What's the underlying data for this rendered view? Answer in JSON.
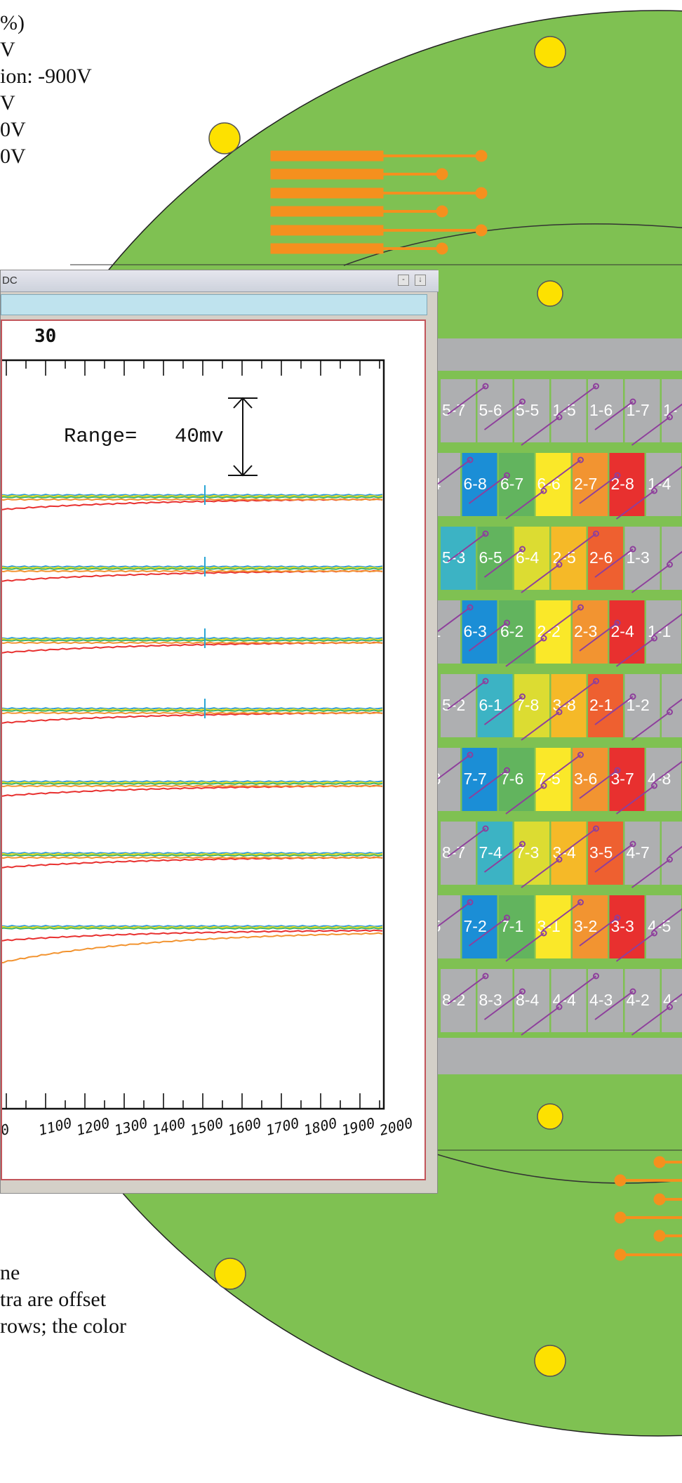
{
  "top_text": [
    "%)",
    "V",
    "ion: -900V",
    "V",
    "0V",
    "0V"
  ],
  "bottom_text": [
    "ne",
    "tra are offset",
    " rows; the color"
  ],
  "scope_window": {
    "title": "DC",
    "min_label": "-",
    "close_label": "↓"
  },
  "plot": {
    "axis_top_label": "30",
    "range_label": "Range=",
    "range_value": "40mv",
    "x_tick_labels": [
      "0",
      "1100",
      "1200",
      "1300",
      "1400",
      "1500",
      "1600",
      "1700",
      "1800",
      "1900",
      "2000"
    ]
  },
  "chart_data": {
    "type": "line",
    "xlim": [
      0,
      2000
    ],
    "range_mv": 40,
    "series": [
      {
        "color": "#2a9ad6",
        "points": [
          [
            0,
            0
          ],
          [
            2000,
            0
          ]
        ]
      }
    ]
  },
  "board": {
    "rows": [
      [
        {
          "label": "5-7",
          "color": "#aeafb1"
        },
        {
          "label": "5-6",
          "color": "#aeafb1"
        },
        {
          "label": "5-5",
          "color": "#aeafb1"
        },
        {
          "label": "1-5",
          "color": "#aeafb1"
        },
        {
          "label": "1-6",
          "color": "#aeafb1"
        },
        {
          "label": "1-7",
          "color": "#aeafb1"
        },
        {
          "label": "1-",
          "color": "#aeafb1"
        }
      ],
      [
        {
          "label": "-4",
          "color": "#aeafb1"
        },
        {
          "label": "6-8",
          "color": "#1b8ed6"
        },
        {
          "label": "6-7",
          "color": "#62b45e"
        },
        {
          "label": "6-6",
          "color": "#fae829"
        },
        {
          "label": "2-7",
          "color": "#f29431"
        },
        {
          "label": "2-8",
          "color": "#e8302f"
        },
        {
          "label": "1-4",
          "color": "#aeafb1"
        }
      ],
      [
        {
          "label": "5-3",
          "color": "#3cb3c4"
        },
        {
          "label": "6-5",
          "color": "#62b45e"
        },
        {
          "label": "6-4",
          "color": "#dcdc32"
        },
        {
          "label": "2-5",
          "color": "#f5b928"
        },
        {
          "label": "2-6",
          "color": "#ee6030"
        },
        {
          "label": "1-3",
          "color": "#aeafb1"
        },
        {
          "label": "",
          "color": "#aeafb1"
        }
      ],
      [
        {
          "label": "-1",
          "color": "#aeafb1"
        },
        {
          "label": "6-3",
          "color": "#1b8ed6"
        },
        {
          "label": "6-2",
          "color": "#62b45e"
        },
        {
          "label": "2-2",
          "color": "#fae829"
        },
        {
          "label": "2-3",
          "color": "#f29431"
        },
        {
          "label": "2-4",
          "color": "#e8302f"
        },
        {
          "label": "1-1",
          "color": "#aeafb1"
        }
      ],
      [
        {
          "label": "5-2",
          "color": "#aeafb1"
        },
        {
          "label": "6-1",
          "color": "#3cb3c4"
        },
        {
          "label": "7-8",
          "color": "#dcdc32"
        },
        {
          "label": "3-8",
          "color": "#f5b928"
        },
        {
          "label": "2-1",
          "color": "#ee6030"
        },
        {
          "label": "1-2",
          "color": "#aeafb1"
        },
        {
          "label": "",
          "color": "#aeafb1"
        }
      ],
      [
        {
          "label": "-8",
          "color": "#aeafb1"
        },
        {
          "label": "7-7",
          "color": "#1b8ed6"
        },
        {
          "label": "7-6",
          "color": "#62b45e"
        },
        {
          "label": "7-5",
          "color": "#fae829"
        },
        {
          "label": "3-6",
          "color": "#f29431"
        },
        {
          "label": "3-7",
          "color": "#e8302f"
        },
        {
          "label": "4-8",
          "color": "#aeafb1"
        }
      ],
      [
        {
          "label": "8-7",
          "color": "#aeafb1"
        },
        {
          "label": "7-4",
          "color": "#3cb3c4"
        },
        {
          "label": "7-3",
          "color": "#dcdc32"
        },
        {
          "label": "3-4",
          "color": "#f5b928"
        },
        {
          "label": "3-5",
          "color": "#ee6030"
        },
        {
          "label": "4-7",
          "color": "#aeafb1"
        },
        {
          "label": "",
          "color": "#aeafb1"
        }
      ],
      [
        {
          "label": "-5",
          "color": "#aeafb1"
        },
        {
          "label": "7-2",
          "color": "#1b8ed6"
        },
        {
          "label": "7-1",
          "color": "#62b45e"
        },
        {
          "label": "3-1",
          "color": "#fae829"
        },
        {
          "label": "3-2",
          "color": "#f29431"
        },
        {
          "label": "3-3",
          "color": "#e8302f"
        },
        {
          "label": "4-5",
          "color": "#aeafb1"
        }
      ],
      [
        {
          "label": "8-2",
          "color": "#aeafb1"
        },
        {
          "label": "8-3",
          "color": "#aeafb1"
        },
        {
          "label": "8-4",
          "color": "#aeafb1"
        },
        {
          "label": "4-4",
          "color": "#aeafb1"
        },
        {
          "label": "4-3",
          "color": "#aeafb1"
        },
        {
          "label": "4-2",
          "color": "#aeafb1"
        },
        {
          "label": "4-",
          "color": "#aeafb1"
        }
      ]
    ]
  },
  "colors": {
    "board_green": "#7fc152",
    "pad_yellow": "#fde100",
    "trace_orange": "#f5901e",
    "wire_purple": "#8e3f9c",
    "gray_band": "#aeafb1"
  }
}
